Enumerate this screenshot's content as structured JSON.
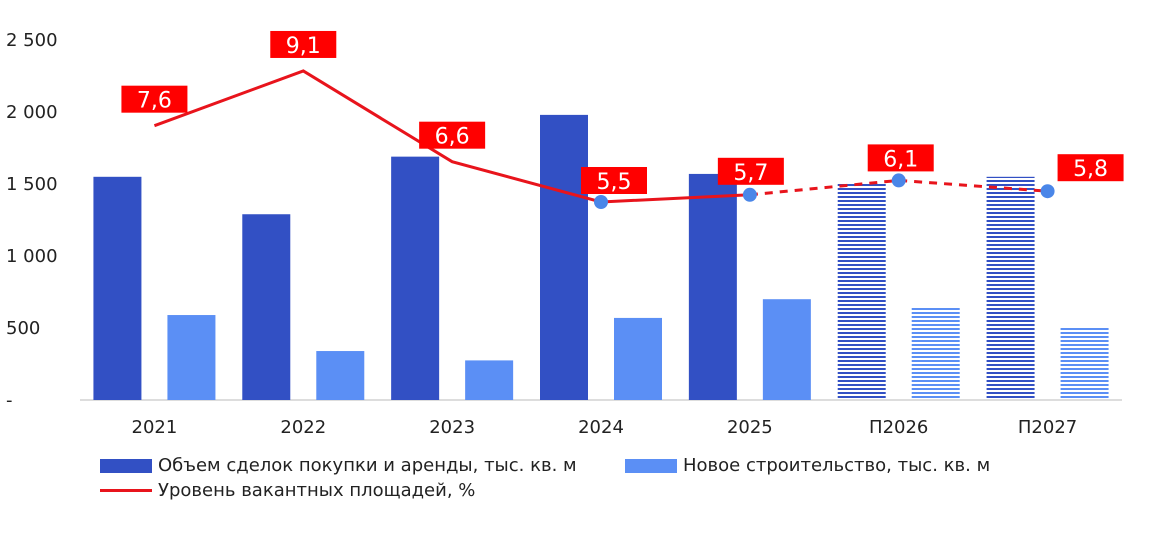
{
  "chart_data": {
    "type": "bar",
    "categories": [
      "2021",
      "2022",
      "2023",
      "2024",
      "2025",
      "П2026",
      "П2027"
    ],
    "forecast_from_index": 5,
    "y_ticks": [
      "-",
      "500",
      "1 000",
      "1 500",
      "2 000",
      "2 500"
    ],
    "ylim": [
      0,
      2500
    ],
    "series": [
      {
        "name": "Объем сделок покупки и аренды, тыс. кв. м",
        "type": "bar",
        "color": "#3250c4",
        "values": [
          1550,
          1290,
          1690,
          1980,
          1570,
          1500,
          1550
        ]
      },
      {
        "name": "Новое строительство, тыс. кв. м",
        "type": "bar",
        "color": "#5b8ff5",
        "values": [
          590,
          340,
          275,
          570,
          700,
          640,
          500
        ]
      },
      {
        "name": "Уровень вакантных площадей, %",
        "type": "line",
        "color": "#e8141c",
        "values": [
          7.6,
          9.1,
          6.6,
          5.5,
          5.7,
          6.1,
          5.8
        ],
        "labels": [
          "7,6",
          "9,1",
          "6,6",
          "5,5",
          "5,7",
          "6,1",
          "5,8"
        ],
        "line_y_left_units": [
          1905,
          2285,
          1655,
          1375,
          1425,
          1525,
          1450
        ]
      }
    ]
  }
}
